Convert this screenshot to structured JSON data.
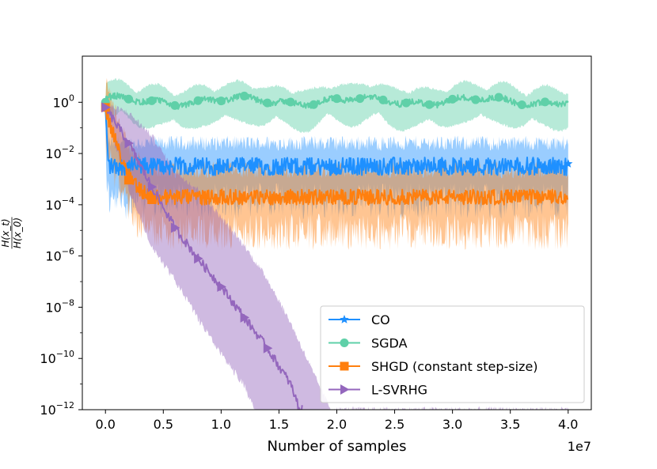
{
  "chart_data": {
    "type": "line",
    "title": "",
    "xlabel": "Number of samples",
    "x_offset_label": "1e7",
    "ylabel_numerator": "H(x_t)",
    "ylabel_denominator": "H(x_0)",
    "xlim": [
      -0.2,
      4.2
    ],
    "ylim_log10": [
      -12,
      1.8
    ],
    "yscale": "log",
    "xticks": [
      0.0,
      0.5,
      1.0,
      1.5,
      2.0,
      2.5,
      3.0,
      3.5,
      4.0
    ],
    "xtick_labels": [
      "0.0",
      "0.5",
      "1.0",
      "1.5",
      "2.0",
      "2.5",
      "3.0",
      "3.5",
      "4.0"
    ],
    "yticks_exp": [
      0,
      -2,
      -4,
      -6,
      -8,
      -10,
      -12
    ],
    "ytick_mantissa": "10",
    "ytick_exponents": [
      "0",
      "−2",
      "−4",
      "−6",
      "−8",
      "−10",
      "−12"
    ],
    "legend_position": "lower-right",
    "series": [
      {
        "name": "CO",
        "color": "#1e90ff",
        "marker": "star",
        "start_log10": -0.2,
        "plateau_log10": -2.5,
        "drop_until_x": 0.04,
        "noise_log10": 0.35,
        "band_upper_log10": 1.0,
        "band_lower_log10": 1.6,
        "marker_x": [
          0.0,
          4.0
        ]
      },
      {
        "name": "SGDA",
        "color": "#5fd0a8",
        "marker": "circle",
        "start_log10": 0.0,
        "plateau_log10": 0.05,
        "noise_log10": 0.12,
        "band_upper_log10": 0.6,
        "band_lower_log10": 1.0,
        "marker_x": [
          0.0,
          0.2,
          0.4,
          0.6,
          0.8,
          1.0,
          1.2,
          1.4,
          1.6,
          1.8,
          2.0,
          2.2,
          2.4,
          2.6,
          2.8,
          3.0,
          3.2,
          3.4,
          3.6,
          3.8
        ]
      },
      {
        "name": "SHGD (constant step-size)",
        "color": "#ff7f0e",
        "marker": "square",
        "start_log10": -0.2,
        "plateau_log10": -3.7,
        "drop_until_x": 0.45,
        "noise_log10": 0.3,
        "band_upper_log10": 1.2,
        "band_lower_log10": 1.6,
        "marker_x": [
          0.0,
          0.2,
          0.4
        ]
      },
      {
        "name": "L-SVRHG",
        "color": "#9467bd",
        "marker": "triangle-right",
        "points": [
          [
            0.0,
            -0.2
          ],
          [
            0.2,
            -1.6
          ],
          [
            0.4,
            -3.3
          ],
          [
            0.6,
            -4.9
          ],
          [
            0.8,
            -6.1
          ],
          [
            1.0,
            -7.2
          ],
          [
            1.2,
            -8.4
          ],
          [
            1.4,
            -9.6
          ],
          [
            1.6,
            -11.0
          ],
          [
            1.68,
            -12.0
          ]
        ],
        "band_upper": [
          [
            0.0,
            -0.1
          ],
          [
            0.2,
            -0.4
          ],
          [
            0.4,
            -1.3
          ],
          [
            0.6,
            -2.7
          ],
          [
            0.8,
            -3.4
          ],
          [
            1.0,
            -4.5
          ],
          [
            1.2,
            -5.6
          ],
          [
            1.4,
            -6.9
          ],
          [
            1.6,
            -8.6
          ],
          [
            1.8,
            -10.6
          ],
          [
            1.95,
            -12.0
          ]
        ],
        "band_lower": [
          [
            0.0,
            -0.3
          ],
          [
            0.2,
            -3.2
          ],
          [
            0.4,
            -5.5
          ],
          [
            0.6,
            -6.8
          ],
          [
            0.8,
            -8.3
          ],
          [
            1.0,
            -9.7
          ],
          [
            1.2,
            -10.9
          ],
          [
            1.3,
            -12.0
          ]
        ],
        "marker_x": [
          0.0,
          0.2,
          0.4,
          0.6,
          0.8,
          1.0,
          1.2,
          1.4
        ]
      }
    ]
  }
}
